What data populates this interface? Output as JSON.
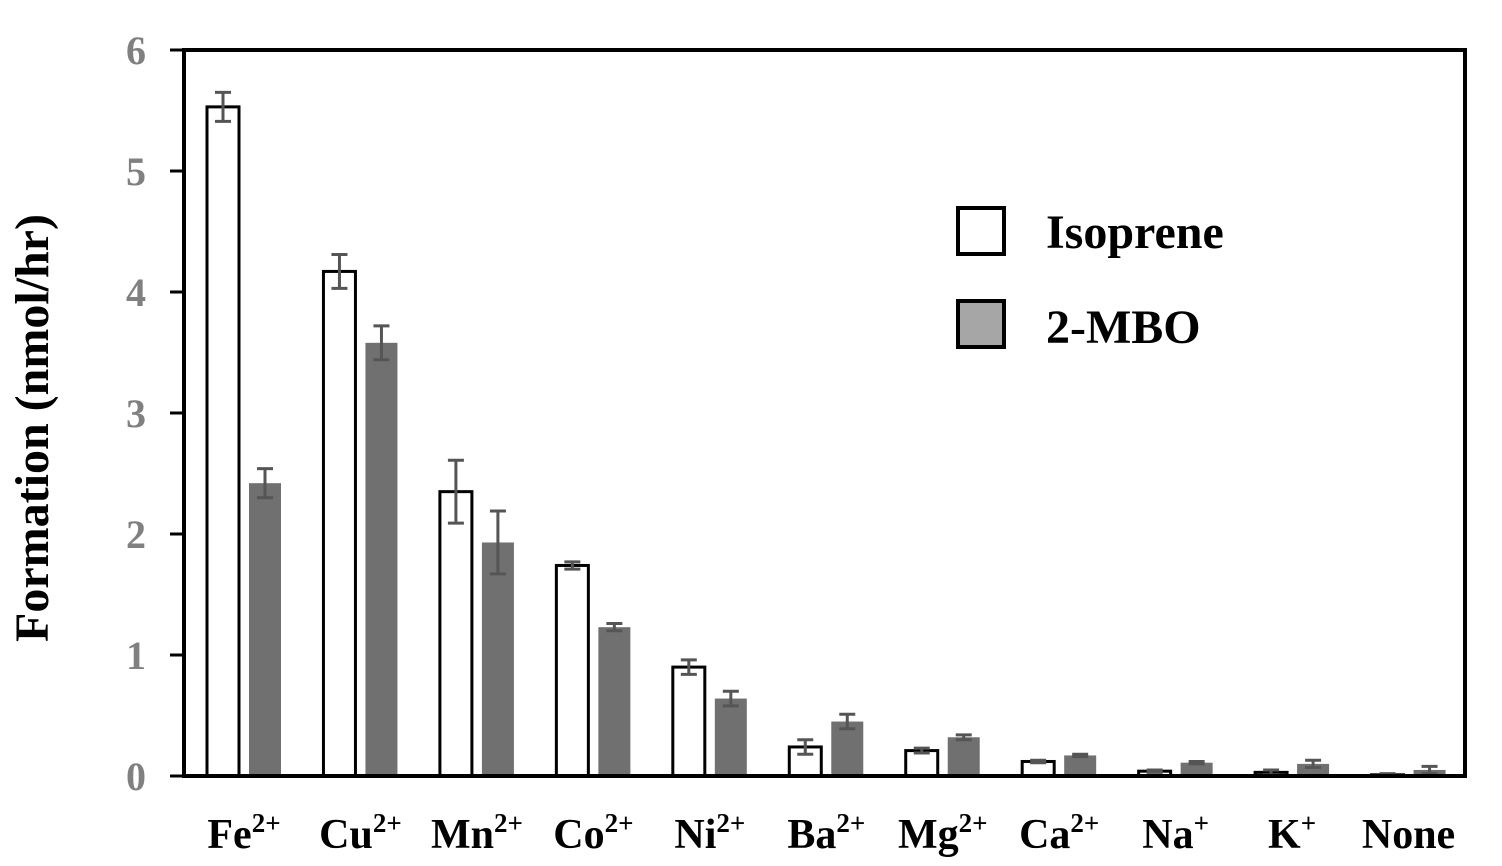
{
  "chart_data": {
    "type": "bar",
    "title": "",
    "ylabel": "Formation (nmol/hr)",
    "xlabel": "",
    "ylim": [
      0,
      6
    ],
    "yticks": [
      0,
      1,
      2,
      3,
      4,
      5,
      6
    ],
    "grid": false,
    "legend_position": "top-right",
    "categories": [
      {
        "base": "Fe",
        "sup": "2+"
      },
      {
        "base": "Cu",
        "sup": "2+"
      },
      {
        "base": "Mn",
        "sup": "2+"
      },
      {
        "base": "Co",
        "sup": "2+"
      },
      {
        "base": "Ni",
        "sup": "2+"
      },
      {
        "base": "Ba",
        "sup": "2+"
      },
      {
        "base": "Mg",
        "sup": "2+"
      },
      {
        "base": "Ca",
        "sup": "2+"
      },
      {
        "base": "Na",
        "sup": "+"
      },
      {
        "base": "K",
        "sup": "+"
      },
      {
        "base": "None",
        "sup": ""
      }
    ],
    "series": [
      {
        "name": "Isoprene",
        "color": "#ffffff",
        "values": [
          5.53,
          4.17,
          2.35,
          1.74,
          0.9,
          0.24,
          0.21,
          0.12,
          0.04,
          0.03,
          0.01
        ],
        "errors": [
          0.12,
          0.14,
          0.26,
          0.03,
          0.06,
          0.06,
          0.02,
          0.01,
          0.01,
          0.02,
          0.01
        ]
      },
      {
        "name": "2-MBO",
        "color": "#707070",
        "legend_color": "#a6a6a6",
        "values": [
          2.42,
          3.58,
          1.93,
          1.23,
          0.64,
          0.45,
          0.32,
          0.17,
          0.11,
          0.1,
          0.05
        ],
        "errors": [
          0.12,
          0.14,
          0.26,
          0.03,
          0.06,
          0.06,
          0.02,
          0.01,
          0.01,
          0.03,
          0.03
        ]
      }
    ]
  }
}
